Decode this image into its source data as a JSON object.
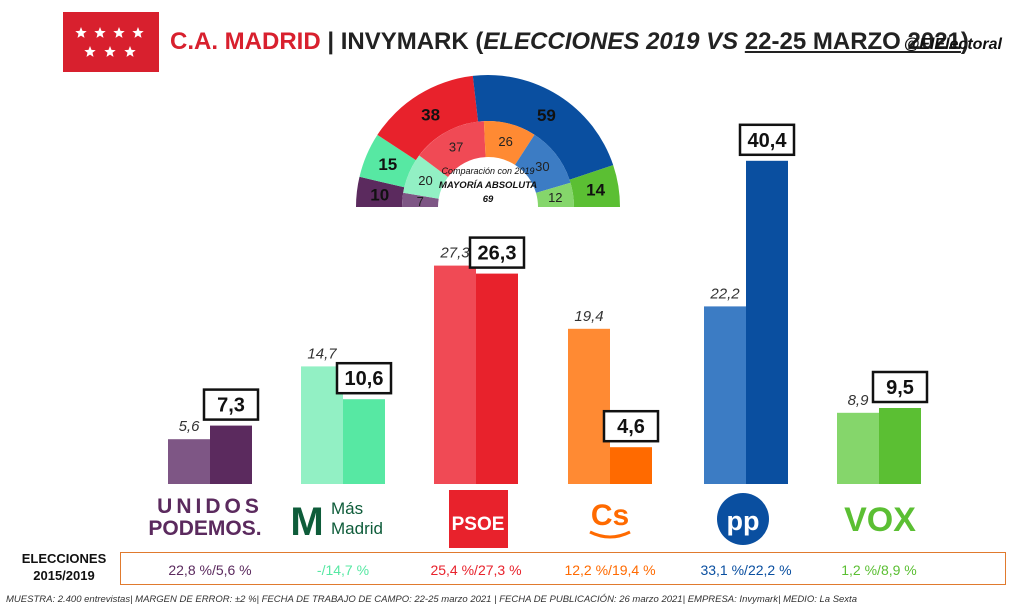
{
  "header": {
    "region": "C.A. MADRID",
    "sep": " | INVYMARK (",
    "elections": "ELECCIONES 2019 VS ",
    "date": "22-25 MARZO 2021",
    "close": ")",
    "handle": "@ElElectoral"
  },
  "hemicycle": {
    "caption1": "Comparación con 2019",
    "caption2": "MAYORÍA ABSOLUTA",
    "caption3": "69",
    "outer": [
      {
        "party": "Unidas Podemos",
        "seats": 10,
        "color": "#5b2a5e"
      },
      {
        "party": "Más Madrid",
        "seats": 15,
        "color": "#57e8a3"
      },
      {
        "party": "PSOE",
        "seats": 38,
        "color": "#e8222c"
      },
      {
        "party": "PP",
        "seats": 59,
        "color": "#0a4fa0"
      },
      {
        "party": "Vox",
        "seats": 14,
        "color": "#5bbf33"
      }
    ],
    "inner": [
      {
        "party": "Unidas Podemos",
        "seats": 7,
        "color": "#7e5685"
      },
      {
        "party": "Más Madrid",
        "seats": 20,
        "color": "#92f0c4"
      },
      {
        "party": "PSOE",
        "seats": 37,
        "color": "#f04a55"
      },
      {
        "party": "Cs",
        "seats": 26,
        "color": "#ff8a33"
      },
      {
        "party": "PP",
        "seats": 30,
        "color": "#3c7cc4"
      },
      {
        "party": "Vox",
        "seats": 12,
        "color": "#85d66b"
      }
    ]
  },
  "chart_data": {
    "type": "bar",
    "categories": [
      "Unidas Podemos",
      "Más Madrid",
      "PSOE",
      "Cs",
      "PP",
      "Vox"
    ],
    "series": [
      {
        "name": "2019",
        "values": [
          5.6,
          14.7,
          27.3,
          19.4,
          22.2,
          8.9
        ],
        "labels": [
          "5,6",
          "14,7",
          "27,3",
          "19,4",
          "22,2",
          "8,9"
        ]
      },
      {
        "name": "22-25 marzo 2021",
        "values": [
          7.3,
          10.6,
          26.3,
          4.6,
          40.4,
          9.5
        ],
        "labels": [
          "7,3",
          "10,6",
          "26,3",
          "4,6",
          "40,4",
          "9,5"
        ]
      }
    ],
    "colors_2019": [
      "#7e5685",
      "#92f0c4",
      "#f04a55",
      "#ff8a33",
      "#3c7cc4",
      "#85d66b"
    ],
    "colors_2021": [
      "#5b2a5e",
      "#57e8a3",
      "#e8222c",
      "#ff6a00",
      "#0a4fa0",
      "#5bbf33"
    ]
  },
  "logos": [
    {
      "line1": "UNIDOS",
      "line2": "PODEMOS.",
      "color": "#5b2a5e"
    },
    {
      "mark": "M",
      "line1": "Más",
      "line2": "Madrid",
      "color": "#0e5c3a"
    },
    {
      "text": "PSOE",
      "color": "#e8222c"
    },
    {
      "text": "Cs",
      "color": "#ff6a00"
    },
    {
      "text": "pp",
      "color": "#0a4fa0"
    },
    {
      "text": "VOX",
      "color": "#5bbf33"
    }
  ],
  "elections_row": {
    "label1": "ELECCIONES",
    "label2": "2015/2019",
    "values": [
      "22,8 %/5,6 %",
      "-/14,7 %",
      "25,4 %/27,3 %",
      "12,2 %/19,4 %",
      "33,1 %/22,2 %",
      "1,2 %/8,9 %"
    ],
    "colors": [
      "#5b2a5e",
      "#57e8a3",
      "#e8222c",
      "#ff6a00",
      "#0a4fa0",
      "#5bbf33"
    ]
  },
  "footnote": "MUESTRA: 2.400 entrevistas| MARGEN DE ERROR: ±2 %| FECHA DE TRABAJO DE CAMPO: 22-25 marzo 2021 | FECHA DE PUBLICACIÓN: 26 marzo 2021| EMPRESA: Invymark| MEDIO: La Sexta"
}
